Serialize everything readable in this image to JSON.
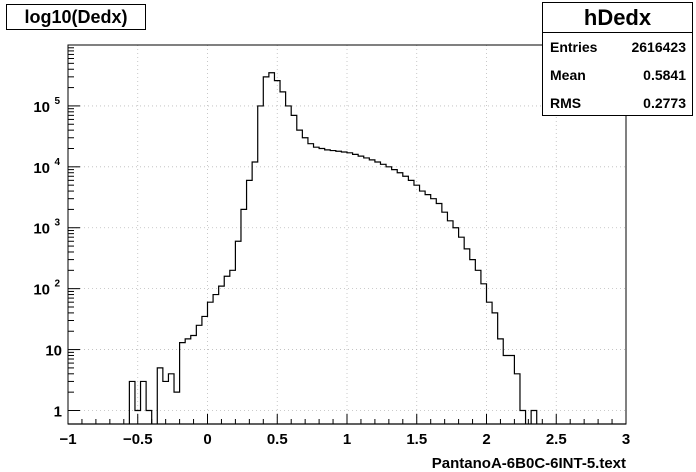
{
  "chart_data": {
    "type": "bar",
    "title": "log10(Dedx)",
    "xlabel": "PantanoA-6B0C-6INT-5.text",
    "ylabel": "",
    "xlim": [
      -1,
      3
    ],
    "ylim": [
      0.6,
      1000000
    ],
    "y_scale": "log",
    "grid": true,
    "x_ticks": [
      -1,
      -0.5,
      0,
      0.5,
      1,
      1.5,
      2,
      2.5,
      3
    ],
    "x_tick_labels": [
      "−1",
      "−0.5",
      "0",
      "0.5",
      "1",
      "1.5",
      "2",
      "2.5",
      "3"
    ],
    "y_ticks": [
      1,
      10,
      100,
      1000,
      10000,
      100000
    ],
    "bin_width": 0.04,
    "series": [
      {
        "bins": [
          {
            "x": -0.56,
            "y": 3
          },
          {
            "x": -0.52,
            "y": 1
          },
          {
            "x": -0.48,
            "y": 3
          },
          {
            "x": -0.44,
            "y": 1
          },
          {
            "x": -0.36,
            "y": 5
          },
          {
            "x": -0.32,
            "y": 3
          },
          {
            "x": -0.28,
            "y": 4
          },
          {
            "x": -0.24,
            "y": 2
          },
          {
            "x": -0.2,
            "y": 13
          },
          {
            "x": -0.16,
            "y": 15
          },
          {
            "x": -0.12,
            "y": 17
          },
          {
            "x": -0.08,
            "y": 25
          },
          {
            "x": -0.04,
            "y": 35
          },
          {
            "x": 0,
            "y": 60
          },
          {
            "x": 0.04,
            "y": 80
          },
          {
            "x": 0.08,
            "y": 110
          },
          {
            "x": 0.12,
            "y": 160
          },
          {
            "x": 0.16,
            "y": 200
          },
          {
            "x": 0.2,
            "y": 600
          },
          {
            "x": 0.24,
            "y": 2000
          },
          {
            "x": 0.28,
            "y": 6000
          },
          {
            "x": 0.32,
            "y": 12000
          },
          {
            "x": 0.36,
            "y": 100000
          },
          {
            "x": 0.4,
            "y": 300000
          },
          {
            "x": 0.44,
            "y": 350000
          },
          {
            "x": 0.48,
            "y": 260000
          },
          {
            "x": 0.52,
            "y": 170000
          },
          {
            "x": 0.56,
            "y": 100000
          },
          {
            "x": 0.6,
            "y": 70000
          },
          {
            "x": 0.64,
            "y": 40000
          },
          {
            "x": 0.68,
            "y": 30000
          },
          {
            "x": 0.72,
            "y": 24000
          },
          {
            "x": 0.76,
            "y": 21000
          },
          {
            "x": 0.8,
            "y": 20000
          },
          {
            "x": 0.84,
            "y": 19000
          },
          {
            "x": 0.88,
            "y": 18500
          },
          {
            "x": 0.92,
            "y": 18000
          },
          {
            "x": 0.96,
            "y": 17500
          },
          {
            "x": 1,
            "y": 17000
          },
          {
            "x": 1.04,
            "y": 16000
          },
          {
            "x": 1.08,
            "y": 15000
          },
          {
            "x": 1.12,
            "y": 14000
          },
          {
            "x": 1.16,
            "y": 13000
          },
          {
            "x": 1.2,
            "y": 12000
          },
          {
            "x": 1.24,
            "y": 11000
          },
          {
            "x": 1.28,
            "y": 10000
          },
          {
            "x": 1.32,
            "y": 9000
          },
          {
            "x": 1.36,
            "y": 8000
          },
          {
            "x": 1.4,
            "y": 7000
          },
          {
            "x": 1.44,
            "y": 6000
          },
          {
            "x": 1.48,
            "y": 5000
          },
          {
            "x": 1.52,
            "y": 4000
          },
          {
            "x": 1.56,
            "y": 3500
          },
          {
            "x": 1.6,
            "y": 3000
          },
          {
            "x": 1.64,
            "y": 2500
          },
          {
            "x": 1.68,
            "y": 1800
          },
          {
            "x": 1.72,
            "y": 1300
          },
          {
            "x": 1.76,
            "y": 1000
          },
          {
            "x": 1.8,
            "y": 700
          },
          {
            "x": 1.84,
            "y": 450
          },
          {
            "x": 1.88,
            "y": 300
          },
          {
            "x": 1.92,
            "y": 200
          },
          {
            "x": 1.96,
            "y": 120
          },
          {
            "x": 2,
            "y": 60
          },
          {
            "x": 2.04,
            "y": 40
          },
          {
            "x": 2.08,
            "y": 15
          },
          {
            "x": 2.12,
            "y": 8
          },
          {
            "x": 2.16,
            "y": 8
          },
          {
            "x": 2.2,
            "y": 4
          },
          {
            "x": 2.24,
            "y": 1
          },
          {
            "x": 2.32,
            "y": 1
          }
        ]
      }
    ]
  },
  "stats": {
    "name": "hDedx",
    "rows": [
      {
        "label": "Entries",
        "value": "2616423"
      },
      {
        "label": "Mean",
        "value": "0.5841"
      },
      {
        "label": "RMS",
        "value": "0.2773"
      }
    ]
  },
  "colors": {
    "line": "#000000",
    "grid": "#bbbbbb",
    "background": "#ffffff"
  }
}
